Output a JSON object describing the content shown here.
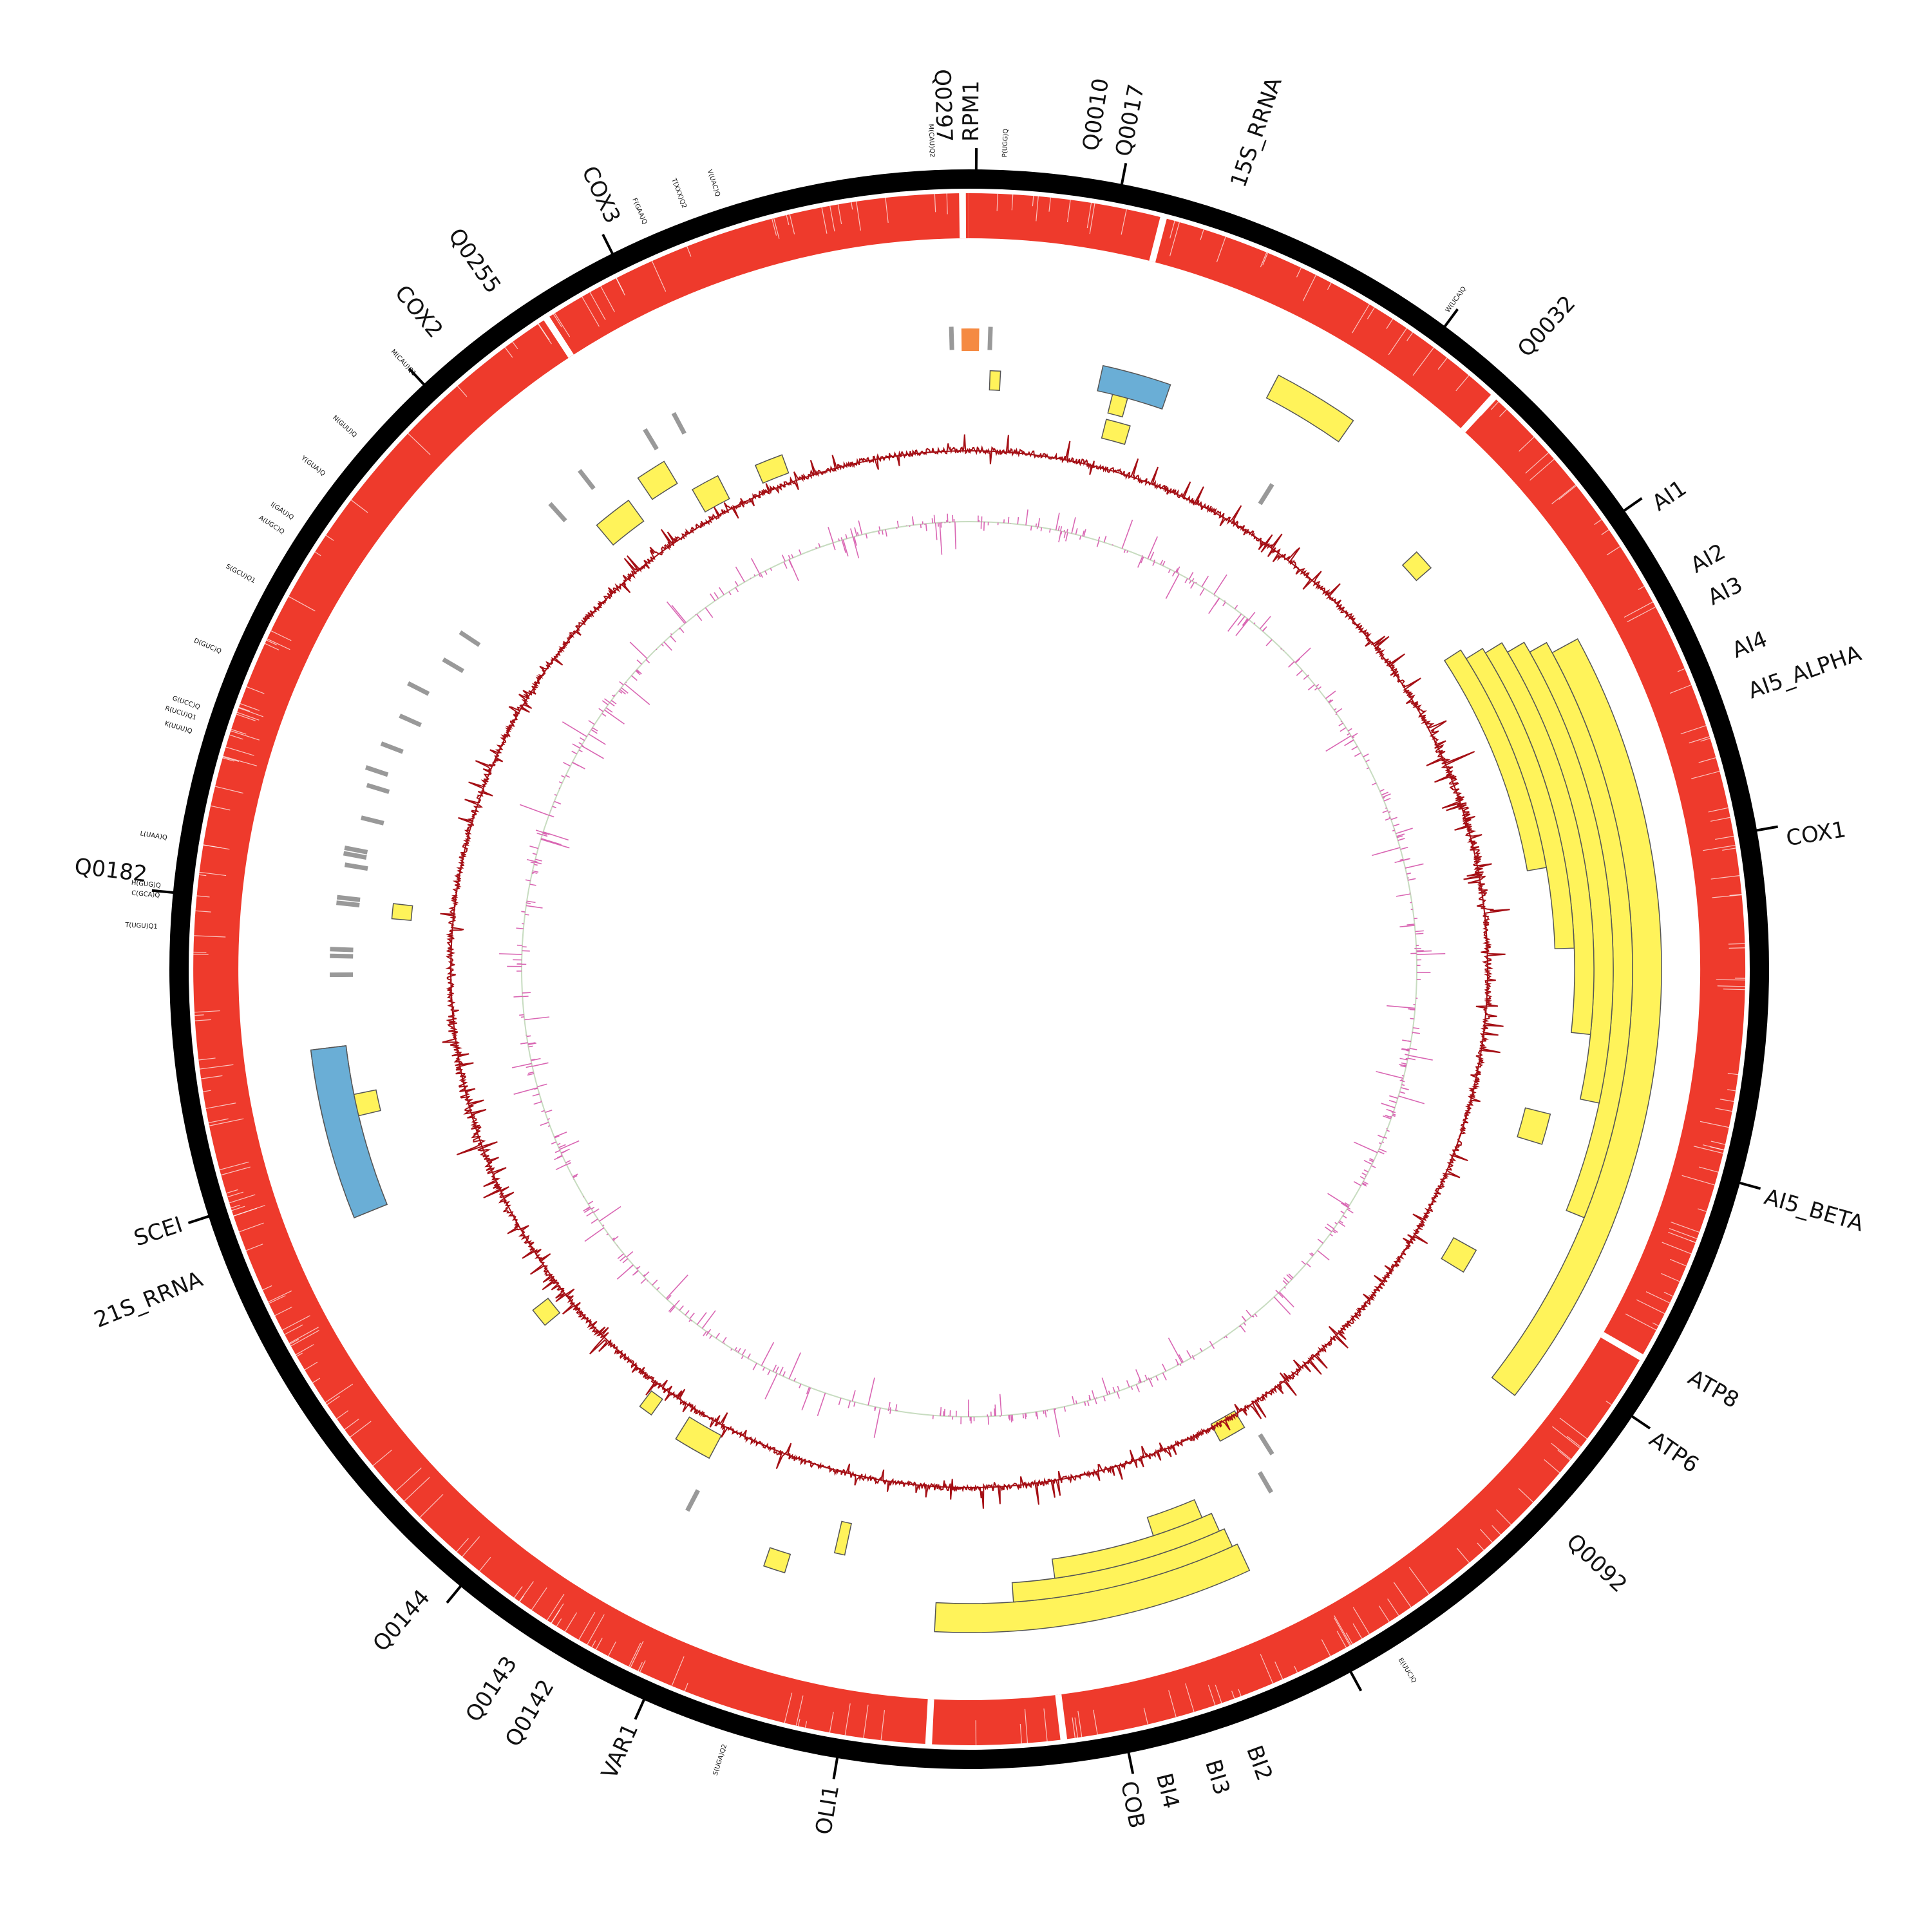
{
  "colors": {
    "backbone": "#000000",
    "coverage": "#ee3a2c",
    "gene": "#fff35a",
    "rrna": "#6aaed6",
    "trna": "#999999",
    "ncrna": "#f58a42",
    "gc_content": "#a50f15",
    "gc_skew": "#d966b3",
    "skew_baseline": "#c7dcc0",
    "outline": "#555555"
  },
  "gene_labels": [
    {
      "text": "Q0297",
      "angle": -1.8
    },
    {
      "text": "RPM1",
      "angle": 0.2
    },
    {
      "text": "Q0010",
      "angle": 8.5
    },
    {
      "text": "Q0017",
      "angle": 10.8
    },
    {
      "text": "15S_RRNA",
      "angle": 19
    },
    {
      "text": "Q0032",
      "angle": 42
    },
    {
      "text": "AI1",
      "angle": 56
    },
    {
      "text": "AI2",
      "angle": 61
    },
    {
      "text": "AI3",
      "angle": 63.5
    },
    {
      "text": "AI4",
      "angle": 67.5
    },
    {
      "text": "AI5_ALPHA",
      "angle": 70.5
    },
    {
      "text": "COX1",
      "angle": 81
    },
    {
      "text": "AI5_BETA",
      "angle": 106
    },
    {
      "text": "ATP8",
      "angle": 119.5
    },
    {
      "text": "ATP6",
      "angle": 124.5
    },
    {
      "text": "Q0092",
      "angle": 133.5
    },
    {
      "text": "BI2",
      "angle": 160
    },
    {
      "text": "BI3",
      "angle": 163
    },
    {
      "text": "BI4",
      "angle": 166.5
    },
    {
      "text": "COB",
      "angle": 169
    },
    {
      "text": "OLI1",
      "angle": 189.5
    },
    {
      "text": "VAR1",
      "angle": 204
    },
    {
      "text": "Q0142",
      "angle": 210.5
    },
    {
      "text": "Q0143",
      "angle": 213.5
    },
    {
      "text": "Q0144",
      "angle": 221
    },
    {
      "text": "21S_RRNA",
      "angle": 248
    },
    {
      "text": "SCEI",
      "angle": 252
    },
    {
      "text": "Q0182",
      "angle": 276.5
    },
    {
      "text": "COX2",
      "angle": 320
    },
    {
      "text": "Q0255",
      "angle": 325
    },
    {
      "text": "COX3",
      "angle": 334.5
    }
  ],
  "trna_labels": [
    {
      "text": "M(CAU)Q2",
      "angle": -2.6
    },
    {
      "text": "P(UGG)Q",
      "angle": 2.5
    },
    {
      "text": "W(UCA)Q",
      "angle": 36
    },
    {
      "text": "E(UUC)Q",
      "angle": 148
    },
    {
      "text": "S(UGA)Q2",
      "angle": 197.5
    },
    {
      "text": "T(UGU)Q1",
      "angle": 273
    },
    {
      "text": "C(GCA)Q",
      "angle": 275.2
    },
    {
      "text": "H(GUG)Q",
      "angle": 275.9
    },
    {
      "text": "L(UAA)Q",
      "angle": 279.3
    },
    {
      "text": "K(UUU)Q",
      "angle": 287
    },
    {
      "text": "R(UCU)Q1",
      "angle": 288
    },
    {
      "text": "G(UCC)Q",
      "angle": 288.8
    },
    {
      "text": "D(GUC)Q",
      "angle": 293
    },
    {
      "text": "S(GCU)Q1",
      "angle": 298.5
    },
    {
      "text": "A(UGC)Q",
      "angle": 302.5
    },
    {
      "text": "I(GAU)Q",
      "angle": 303.7
    },
    {
      "text": "Y(GUA)Q",
      "angle": 307.5
    },
    {
      "text": "N(GUU)Q",
      "angle": 311
    },
    {
      "text": "M(CAU)Q1",
      "angle": 317
    },
    {
      "text": "F(GAA)Q",
      "angle": 336.5
    },
    {
      "text": "T(XXX)Q2",
      "angle": 339.5
    },
    {
      "text": "V(UAC)Q",
      "angle": 342
    }
  ],
  "tick_angles": [
    0.5,
    11,
    36.5,
    55,
    80,
    105.5,
    124,
    151.5,
    168.5,
    189.5,
    204,
    219.5,
    252,
    275.5,
    317,
    333.5
  ],
  "coverage_gaps": [
    -0.5,
    14.5,
    42.5,
    120,
    173,
    183,
    327
  ],
  "gene_arcs": [
    {
      "r1": 1030,
      "r2": 1075,
      "a1": 61.5,
      "a2": 128
    },
    {
      "r1": 1000,
      "r2": 1030,
      "a1": 60.5,
      "a2": 112
    },
    {
      "r1": 970,
      "r2": 1000,
      "a1": 59.5,
      "a2": 102
    },
    {
      "r1": 940,
      "r2": 970,
      "a1": 58.5,
      "a2": 96
    },
    {
      "r1": 910,
      "r2": 940,
      "a1": 58,
      "a2": 88
    },
    {
      "r1": 880,
      "r2": 910,
      "a1": 57,
      "a2": 80
    },
    {
      "r1": 985,
      "r2": 1030,
      "a1": 155,
      "a2": 183
    },
    {
      "r1": 955,
      "r2": 985,
      "a1": 155.5,
      "a2": 176
    },
    {
      "r1": 925,
      "r2": 955,
      "a1": 156,
      "a2": 172
    },
    {
      "r1": 895,
      "r2": 925,
      "a1": 157,
      "a2": 162
    },
    {
      "r1": 1000,
      "r2": 1040,
      "a1": 27.5,
      "a2": 35
    },
    {
      "r1": 975,
      "r2": 1030,
      "a1": 248,
      "a2": 263
    },
    {
      "r1": 890,
      "r2": 930,
      "a1": 104,
      "a2": 107
    },
    {
      "r1": 860,
      "r2": 900,
      "a1": 119,
      "a2": 121.5
    },
    {
      "r1": 800,
      "r2": 830,
      "a1": 149,
      "a2": 152
    },
    {
      "r1": 820,
      "r2": 860,
      "a1": 208,
      "a2": 212
    },
    {
      "r1": 820,
      "r2": 850,
      "a1": 215.5,
      "a2": 217
    },
    {
      "r1": 830,
      "r2": 860,
      "a1": 230,
      "a2": 232
    },
    {
      "r1": 940,
      "r2": 980,
      "a1": 256.5,
      "a2": 258.5
    },
    {
      "r1": 860,
      "r2": 900,
      "a1": 320,
      "a2": 324
    },
    {
      "r1": 880,
      "r2": 920,
      "a1": 326,
      "a2": 329
    },
    {
      "r1": 820,
      "r2": 860,
      "a1": 330,
      "a2": 333
    },
    {
      "r1": 820,
      "r2": 850,
      "a1": 337,
      "a2": 340
    },
    {
      "r1": 890,
      "r2": 920,
      "a1": 14,
      "a2": 15.5
    },
    {
      "r1": 850,
      "r2": 880,
      "a1": 14,
      "a2": 16.5
    },
    {
      "r1": 870,
      "r2": 900,
      "a1": 275,
      "a2": 276.5
    },
    {
      "r1": 900,
      "r2": 930,
      "a1": 2,
      "a2": 3
    },
    {
      "r1": 920,
      "r2": 950,
      "a1": 47,
      "a2": 49
    },
    {
      "r1": 880,
      "r2": 930,
      "a1": 192,
      "a2": 193
    },
    {
      "r1": 950,
      "r2": 980,
      "a1": 197,
      "a2": 199
    }
  ],
  "rrna_arcs": [
    {
      "r1": 975,
      "r2": 1030,
      "a1": 248,
      "a2": 263
    },
    {
      "r1": 920,
      "r2": 960,
      "a1": 12.5,
      "a2": 19
    }
  ],
  "ncrna_arcs": [
    {
      "r1": 960,
      "r2": 995,
      "a1": -0.7,
      "a2": 0.9
    }
  ],
  "trna_marks": [
    {
      "r": 980,
      "a": -1.6
    },
    {
      "r": 980,
      "a": 1.9
    },
    {
      "r": 870,
      "a": 32
    },
    {
      "r": 960,
      "a": 329
    },
    {
      "r": 960,
      "a": 332
    },
    {
      "r": 955,
      "a": 318
    },
    {
      "r": 960,
      "a": 297
    },
    {
      "r": 950,
      "a": 294
    },
    {
      "r": 960,
      "a": 291
    },
    {
      "r": 970,
      "a": 288.5
    },
    {
      "r": 960,
      "a": 287
    },
    {
      "r": 955,
      "a": 284
    },
    {
      "r": 970,
      "a": 281
    },
    {
      "r": 970,
      "a": 280.5
    },
    {
      "r": 965,
      "a": 279.5
    },
    {
      "r": 970,
      "a": 276.5
    },
    {
      "r": 970,
      "a": 276
    },
    {
      "r": 975,
      "a": 271.8
    },
    {
      "r": 975,
      "a": 271.2
    },
    {
      "r": 975,
      "a": 269.5
    },
    {
      "r": 930,
      "a": 303.5
    },
    {
      "r": 930,
      "a": 300.5
    },
    {
      "r": 870,
      "a": 148
    },
    {
      "r": 930,
      "a": 207.5
    },
    {
      "r": 920,
      "a": 150
    },
    {
      "r": 965,
      "a": 322
    }
  ]
}
